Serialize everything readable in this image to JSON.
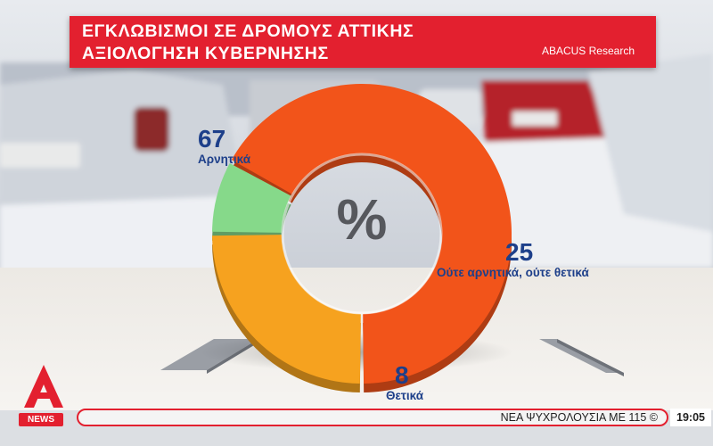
{
  "header": {
    "title_line1": "ΕΓΚΛΩΒΙΣΜΟΙ ΣΕ ΔΡΟΜΟΥΣ ΑΤΤΙΚΗΣ",
    "title_line2": "ΑΞΙΟΛΟΓΗΣΗ ΚΥΒΕΡΝΗΣΗΣ",
    "source": "ABACUS Research"
  },
  "chart_data": {
    "type": "pie",
    "center_label": "%",
    "slices": [
      {
        "label": "Αρνητικά",
        "value": 67,
        "color": "#f2541a"
      },
      {
        "label": "Ούτε αρνητικά, ούτε θετικά",
        "value": 25,
        "color": "#f6a21f"
      },
      {
        "label": "Θετικά",
        "value": 8,
        "color": "#86d98a"
      }
    ]
  },
  "footer": {
    "channel_badge": "NEWS",
    "ticker_text": "ΝΕΑ ΨΥΧΡΟΛΟΥΣΙΑ ΜΕ 115 ©",
    "clock": "19:05"
  },
  "colors": {
    "brand_red": "#e3202f",
    "label_blue": "#1d3f8a"
  }
}
